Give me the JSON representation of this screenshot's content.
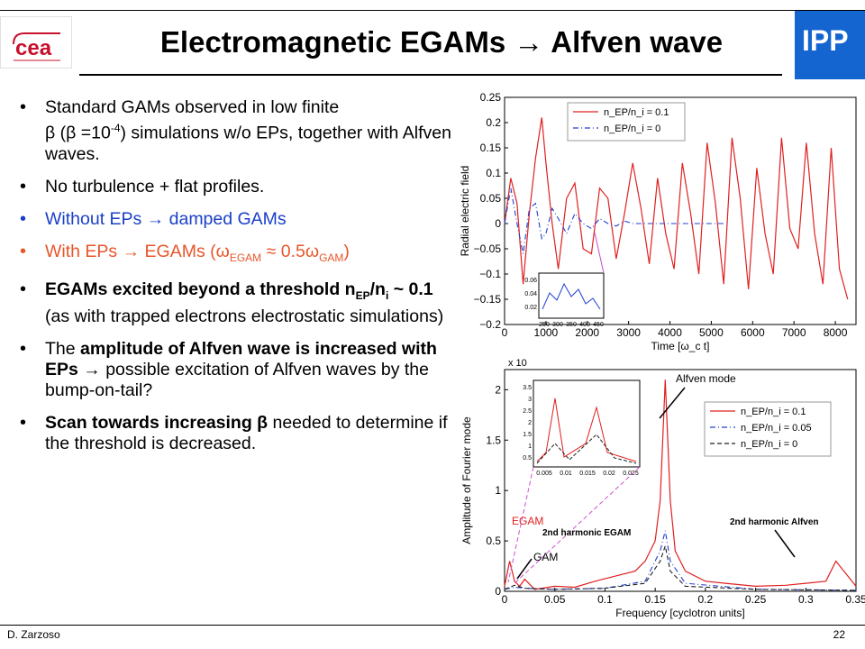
{
  "slide": {
    "title": "Electromagnetic EGAMs → Alfven wave",
    "logo_left_text": "cea",
    "logo_right_text": "IPP",
    "footer_author": "D. Zarzoso",
    "footer_page": "22"
  },
  "bullets": {
    "b1_a": "Standard GAMs observed in low finite",
    "b1_b": "β (β =10",
    "b1_exp": "-4",
    "b1_c": ") simulations w/o EPs, together with Alfven waves.",
    "b2": "No turbulence + flat profiles.",
    "b3": "Without EPs → damped GAMs",
    "b4_a": "With EPs → EGAMs (",
    "b4_w1": "ω",
    "b4_s1": "EGAM",
    "b4_approx": " ≈ 0.5",
    "b4_w2": "ω",
    "b4_s2": "GAM",
    "b4_end": ")",
    "b5_a": "EGAMs excited beyond a threshold n",
    "b5_s1": "EP",
    "b5_b": "/n",
    "b5_s2": "i",
    "b5_c": " ~ 0.1",
    "b5_d": " (as with trapped electrons electrostatic simulations)",
    "b6_a": "The ",
    "b6_b": "amplitude of Alfven wave is increased with EPs",
    "b6_c": " → ",
    "b6_d": "possible excitation of Alfven waves by the bump-on-tail?",
    "b7_a": "Scan towards increasing β",
    "b7_b": " needed to determine if the threshold is decreased."
  },
  "chart_data": [
    {
      "type": "line",
      "xlabel": "Time [ω_c t]",
      "ylabel": "Radial electric field",
      "xlim": [
        0,
        8500
      ],
      "ylim": [
        -0.2,
        0.25
      ],
      "xticks": [
        "0",
        "1000",
        "2000",
        "3000",
        "4000",
        "5000",
        "6000",
        "7000",
        "8000"
      ],
      "yticks": [
        "0.25",
        "0.2",
        "0.15",
        "0.1",
        "0.05",
        "0",
        "−0.05",
        "−0.1",
        "−0.15",
        "−0.2"
      ],
      "legend_position": "top-right",
      "legend": [
        "n_EP/n_i = 0.1",
        "n_EP/n_i = 0"
      ],
      "series": [
        {
          "name": "n_EP/n_i = 0.1",
          "color": "#e02020",
          "style": "solid",
          "x": [
            0,
            150,
            300,
            450,
            600,
            750,
            900,
            1000,
            1150,
            1300,
            1500,
            1700,
            1900,
            2100,
            2300,
            2500,
            2700,
            2900,
            3100,
            3300,
            3500,
            3700,
            3900,
            4100,
            4300,
            4500,
            4700,
            4900,
            5100,
            5300,
            5500,
            5700,
            5900,
            6100,
            6300,
            6500,
            6700,
            6900,
            7100,
            7300,
            7500,
            7700,
            7900,
            8100,
            8300
          ],
          "y": [
            0,
            0.09,
            0.04,
            -0.12,
            0.02,
            0.13,
            0.21,
            0.12,
            0.0,
            -0.09,
            0.05,
            0.08,
            -0.05,
            -0.06,
            0.07,
            0.05,
            -0.07,
            0.02,
            0.12,
            0.03,
            -0.08,
            0.09,
            -0.02,
            -0.09,
            0.12,
            0.02,
            -0.1,
            0.16,
            0.04,
            -0.12,
            0.17,
            0.05,
            -0.13,
            0.11,
            -0.02,
            -0.1,
            0.17,
            -0.01,
            -0.05,
            0.16,
            -0.02,
            -0.12,
            0.15,
            -0.09,
            -0.15
          ]
        },
        {
          "name": "n_EP/n_i = 0",
          "color": "#2040d0",
          "style": "dashdot",
          "x": [
            0,
            150,
            300,
            450,
            600,
            750,
            900,
            1000,
            1150,
            1300,
            1500,
            1700,
            1900,
            2100,
            2300,
            2500,
            2700,
            2900,
            3100,
            3300,
            3500,
            3700,
            3900,
            4100,
            4300,
            4500,
            4700,
            4900,
            5100,
            5300
          ],
          "y": [
            0,
            0.07,
            0.0,
            -0.06,
            0.03,
            0.04,
            -0.03,
            -0.02,
            0.03,
            0.01,
            -0.02,
            0.02,
            0.0,
            -0.01,
            0.01,
            0.0,
            -0.005,
            0.005,
            0.0,
            0.0,
            0.0,
            0.0,
            0.0,
            0.0,
            0.0,
            0.0,
            0.0,
            0.0,
            0.0,
            0.0
          ]
        }
      ],
      "inset": {
        "xticks": [
          "250",
          "300",
          "350",
          "400",
          "450"
        ],
        "yticks": [
          "0.06",
          "0.04",
          "0.02"
        ]
      }
    },
    {
      "type": "line",
      "xlabel": "Frequency [cyclotron units]",
      "ylabel": "Amplitude of Fourier mode",
      "scale_label": "x 10",
      "xlim": [
        0,
        0.35
      ],
      "ylim": [
        0,
        2.2
      ],
      "xticks": [
        "0",
        "0.05",
        "0.1",
        "0.15",
        "0.2",
        "0.25",
        "0.3",
        "0.35"
      ],
      "yticks": [
        "2",
        "1.5",
        "1",
        "0.5",
        "0"
      ],
      "legend_position": "top-right",
      "legend": [
        "n_EP/n_i = 0.1",
        "n_EP/n_i = 0.05",
        "n_EP/n_i = 0"
      ],
      "annotations": [
        "Alfven mode",
        "EGAM",
        "2nd harmonic EGAM",
        "GAM",
        "2nd harmonic Alfven"
      ],
      "series": [
        {
          "name": "n_EP/n_i = 0.1",
          "color": "#e02020",
          "style": "solid",
          "x": [
            0,
            0.005,
            0.01,
            0.015,
            0.02,
            0.03,
            0.05,
            0.07,
            0.09,
            0.11,
            0.13,
            0.14,
            0.15,
            0.155,
            0.16,
            0.165,
            0.17,
            0.18,
            0.2,
            0.22,
            0.25,
            0.28,
            0.3,
            0.32,
            0.33,
            0.35
          ],
          "y": [
            0.05,
            0.3,
            0.1,
            0.05,
            0.12,
            0.02,
            0.05,
            0.04,
            0.1,
            0.15,
            0.2,
            0.3,
            0.5,
            0.9,
            2.1,
            0.9,
            0.4,
            0.2,
            0.1,
            0.08,
            0.05,
            0.06,
            0.08,
            0.1,
            0.3,
            0.05
          ]
        },
        {
          "name": "n_EP/n_i = 0.05",
          "color": "#2040d0",
          "style": "dashdot",
          "x": [
            0,
            0.01,
            0.02,
            0.05,
            0.1,
            0.14,
            0.155,
            0.16,
            0.165,
            0.18,
            0.25,
            0.35
          ],
          "y": [
            0.02,
            0.04,
            0.03,
            0.02,
            0.03,
            0.1,
            0.4,
            0.6,
            0.3,
            0.08,
            0.02,
            0.01
          ]
        },
        {
          "name": "n_EP/n_i = 0",
          "color": "#202020",
          "style": "dashed",
          "x": [
            0,
            0.01,
            0.02,
            0.05,
            0.1,
            0.14,
            0.155,
            0.16,
            0.165,
            0.18,
            0.25,
            0.35
          ],
          "y": [
            0.02,
            0.06,
            0.03,
            0.02,
            0.03,
            0.08,
            0.3,
            0.45,
            0.2,
            0.05,
            0.02,
            0.01
          ]
        }
      ],
      "inset": {
        "xticks": [
          "0.005",
          "0.01",
          "0.015",
          "0.02",
          "0.025"
        ],
        "yticks": [
          "3.5",
          "3",
          "2.5",
          "2",
          "1.5",
          "1",
          "0.5"
        ]
      }
    }
  ]
}
